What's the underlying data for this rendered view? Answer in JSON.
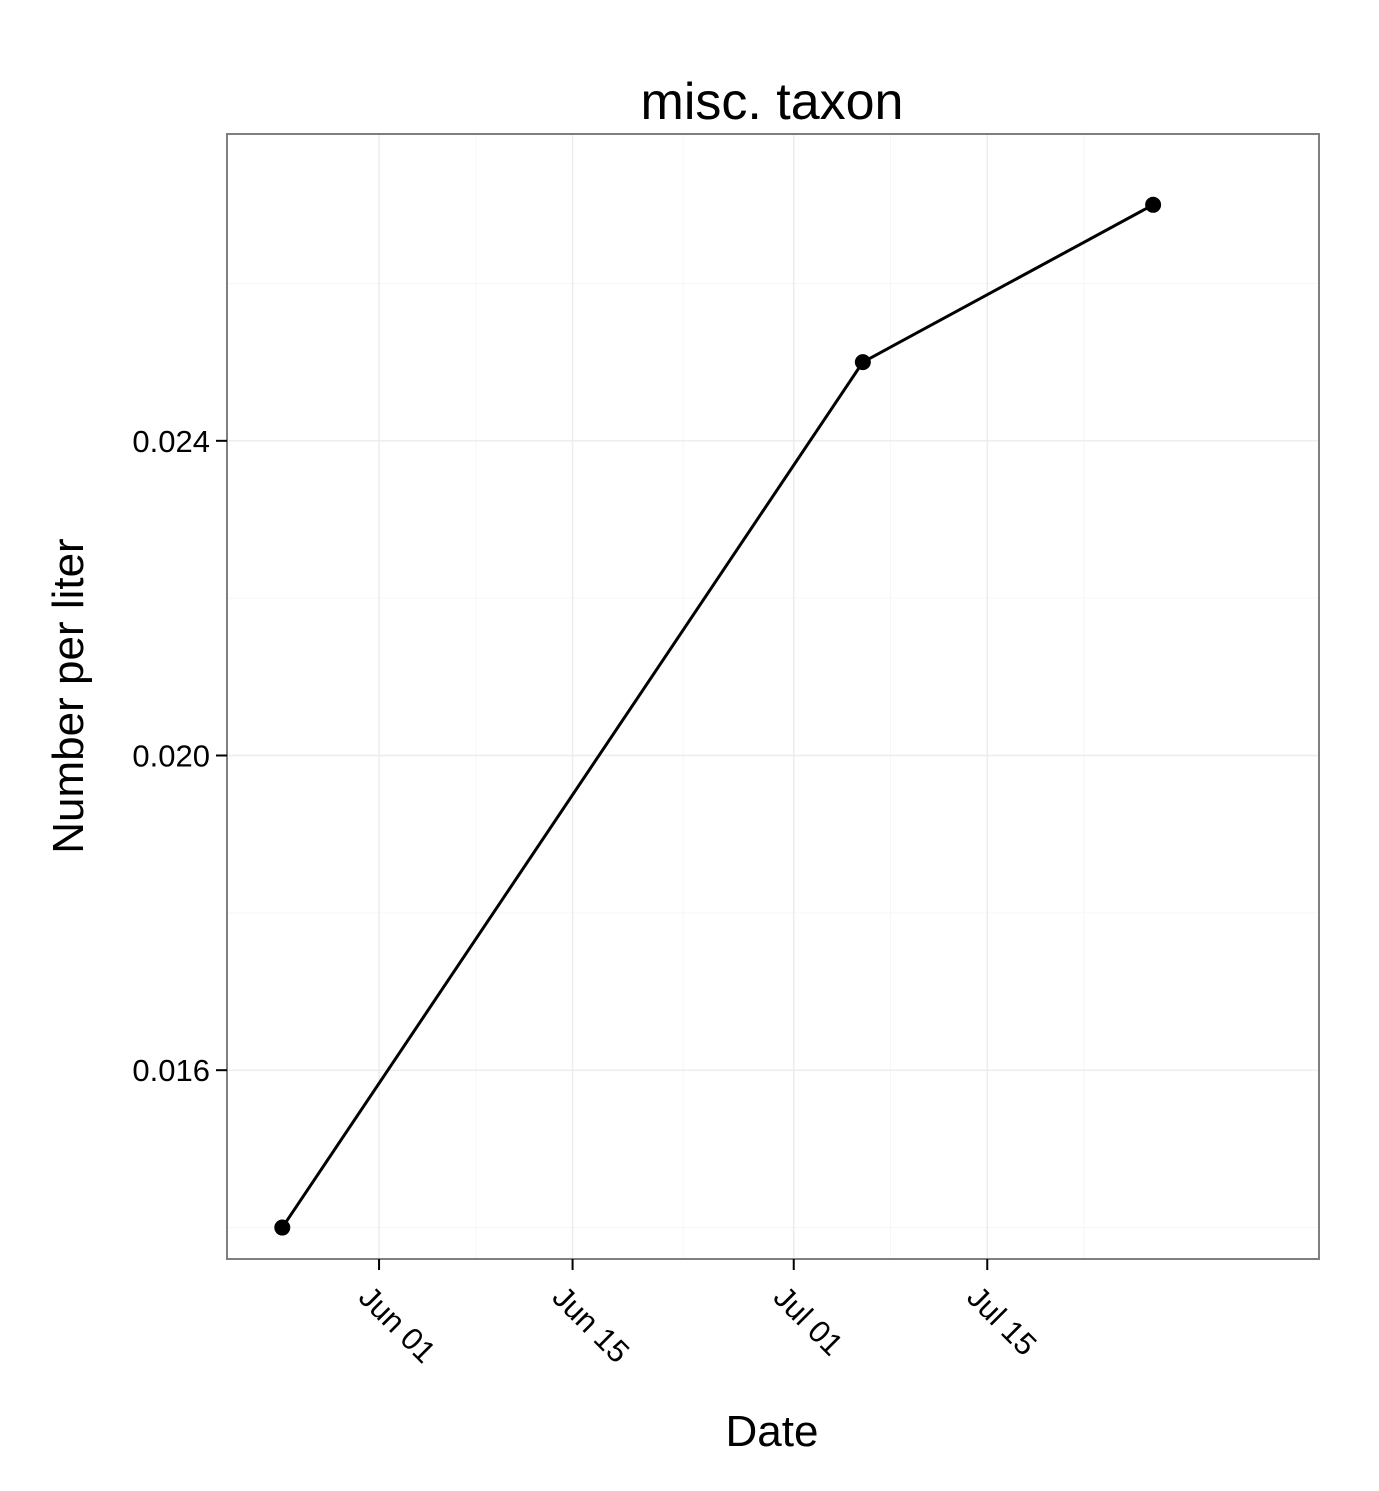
{
  "chart_data": {
    "type": "line",
    "title": "misc. taxon",
    "xlabel": "Date",
    "ylabel": "Number per liter",
    "x_tick_labels": [
      {
        "date": "2012-06-01",
        "label": "Jun 01"
      },
      {
        "date": "2012-06-15",
        "label": "Jun 15"
      },
      {
        "date": "2012-07-01",
        "label": "Jul 01"
      },
      {
        "date": "2012-07-15",
        "label": "Jul 15"
      }
    ],
    "y_tick_labels": [
      {
        "value": 0.016,
        "label": "0.016"
      },
      {
        "value": 0.02,
        "label": "0.020"
      },
      {
        "value": 0.024,
        "label": "0.024"
      }
    ],
    "xlim": [
      "2012-05-21",
      "2012-08-08"
    ],
    "ylim": [
      0.0136,
      0.0279
    ],
    "grid": true,
    "series": [
      {
        "x": [
          "2012-05-25",
          "2012-07-06",
          "2012-07-27"
        ],
        "y": [
          0.014,
          0.025,
          0.027
        ],
        "color": "#000000"
      }
    ]
  }
}
